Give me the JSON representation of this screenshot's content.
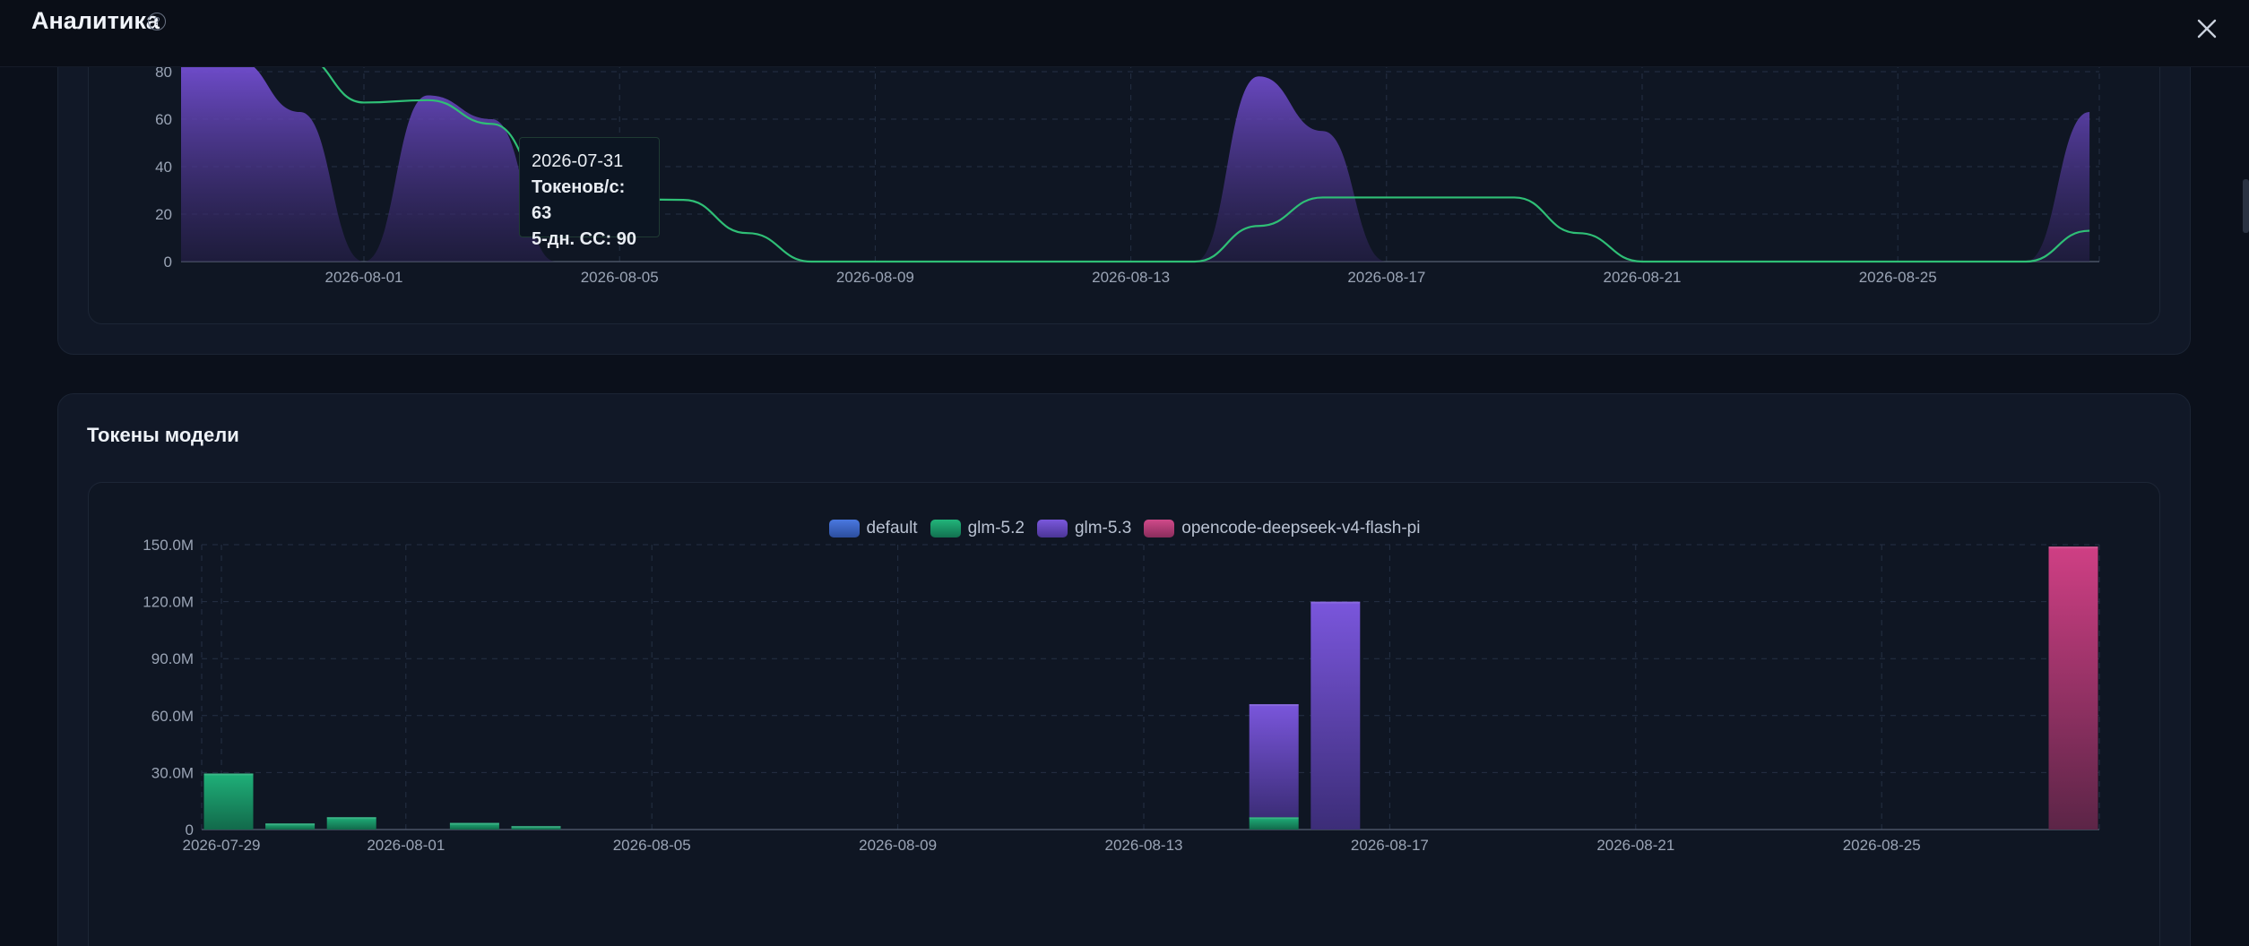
{
  "header": {
    "title": "Аналитика",
    "help_icon": "?",
    "close_icon": "close-icon"
  },
  "colors": {
    "purple": "#6e4fd2",
    "green": "#1aa56f",
    "pink": "#c7407f",
    "blue": "#3a66c9",
    "line": "#2fbf76"
  },
  "speed_chart": {
    "tooltip": {
      "date": "2026-07-31",
      "tokens_label": "Токенов/с: 63",
      "avg_label": "5-дн. СС: 90"
    },
    "chart_data": {
      "type": "area",
      "y_ticks": [
        "80",
        "60",
        "40",
        "20",
        "0"
      ],
      "x_ticks": [
        "2026-08-01",
        "2026-08-05",
        "2026-08-09",
        "2026-08-13",
        "2026-08-17",
        "2026-08-21",
        "2026-08-25"
      ],
      "ylim": [
        0,
        80
      ],
      "grid": true,
      "series": [
        {
          "name": "Токенов/с",
          "type": "area",
          "points": [
            [
              "2026-07-29",
              85
            ],
            [
              "2026-07-30",
              85
            ],
            [
              "2026-07-31",
              63
            ],
            [
              "2026-08-01",
              0
            ],
            [
              "2026-08-02",
              70
            ],
            [
              "2026-08-03",
              60
            ],
            [
              "2026-08-04",
              0
            ],
            [
              "2026-08-13",
              0
            ],
            [
              "2026-08-14",
              0
            ],
            [
              "2026-08-15",
              78
            ],
            [
              "2026-08-16",
              55
            ],
            [
              "2026-08-17",
              0
            ],
            [
              "2026-08-27",
              0
            ],
            [
              "2026-08-28",
              63
            ]
          ]
        },
        {
          "name": "5-дн. СС",
          "type": "line",
          "points": [
            [
              "2026-07-31",
              90
            ],
            [
              "2026-08-01",
              67
            ],
            [
              "2026-08-02",
              68
            ],
            [
              "2026-08-03",
              58
            ],
            [
              "2026-08-04",
              27
            ],
            [
              "2026-08-06",
              26
            ],
            [
              "2026-08-07",
              12
            ],
            [
              "2026-08-08",
              0
            ],
            [
              "2026-08-14",
              0
            ],
            [
              "2026-08-15",
              15
            ],
            [
              "2026-08-16",
              27
            ],
            [
              "2026-08-19",
              27
            ],
            [
              "2026-08-20",
              12
            ],
            [
              "2026-08-21",
              0
            ],
            [
              "2026-08-27",
              0
            ],
            [
              "2026-08-28",
              13
            ]
          ]
        }
      ]
    }
  },
  "tokens_chart": {
    "title": "Токены модели",
    "chart_data": {
      "type": "bar",
      "y_ticks": [
        "150.0M",
        "120.0M",
        "90.0M",
        "60.0M",
        "30.0M",
        "0"
      ],
      "x_ticks": [
        "2026-07-29",
        "2026-08-01",
        "2026-08-05",
        "2026-08-09",
        "2026-08-13",
        "2026-08-17",
        "2026-08-21",
        "2026-08-25"
      ],
      "ylim": [
        0,
        150
      ],
      "unit": "M",
      "stacked": true,
      "grid": true,
      "legend": [
        "default",
        "glm-5.2",
        "glm-5.3",
        "opencode-deepseek-v4-flash-pi"
      ],
      "bars": [
        {
          "date": "2026-07-29",
          "values": {
            "glm-5.2": 29.5
          }
        },
        {
          "date": "2026-07-30",
          "values": {
            "glm-5.2": 3.2
          }
        },
        {
          "date": "2026-07-31",
          "values": {
            "glm-5.2": 6.5
          }
        },
        {
          "date": "2026-08-02",
          "values": {
            "glm-5.2": 3.5
          }
        },
        {
          "date": "2026-08-03",
          "values": {
            "glm-5.2": 1.8
          }
        },
        {
          "date": "2026-08-15",
          "values": {
            "glm-5.2": 6.5,
            "glm-5.3": 59.5
          }
        },
        {
          "date": "2026-08-16",
          "values": {
            "glm-5.3": 120.0
          }
        },
        {
          "date": "2026-08-28",
          "values": {
            "opencode-deepseek-v4-flash-pi": 149.0
          }
        }
      ]
    }
  }
}
